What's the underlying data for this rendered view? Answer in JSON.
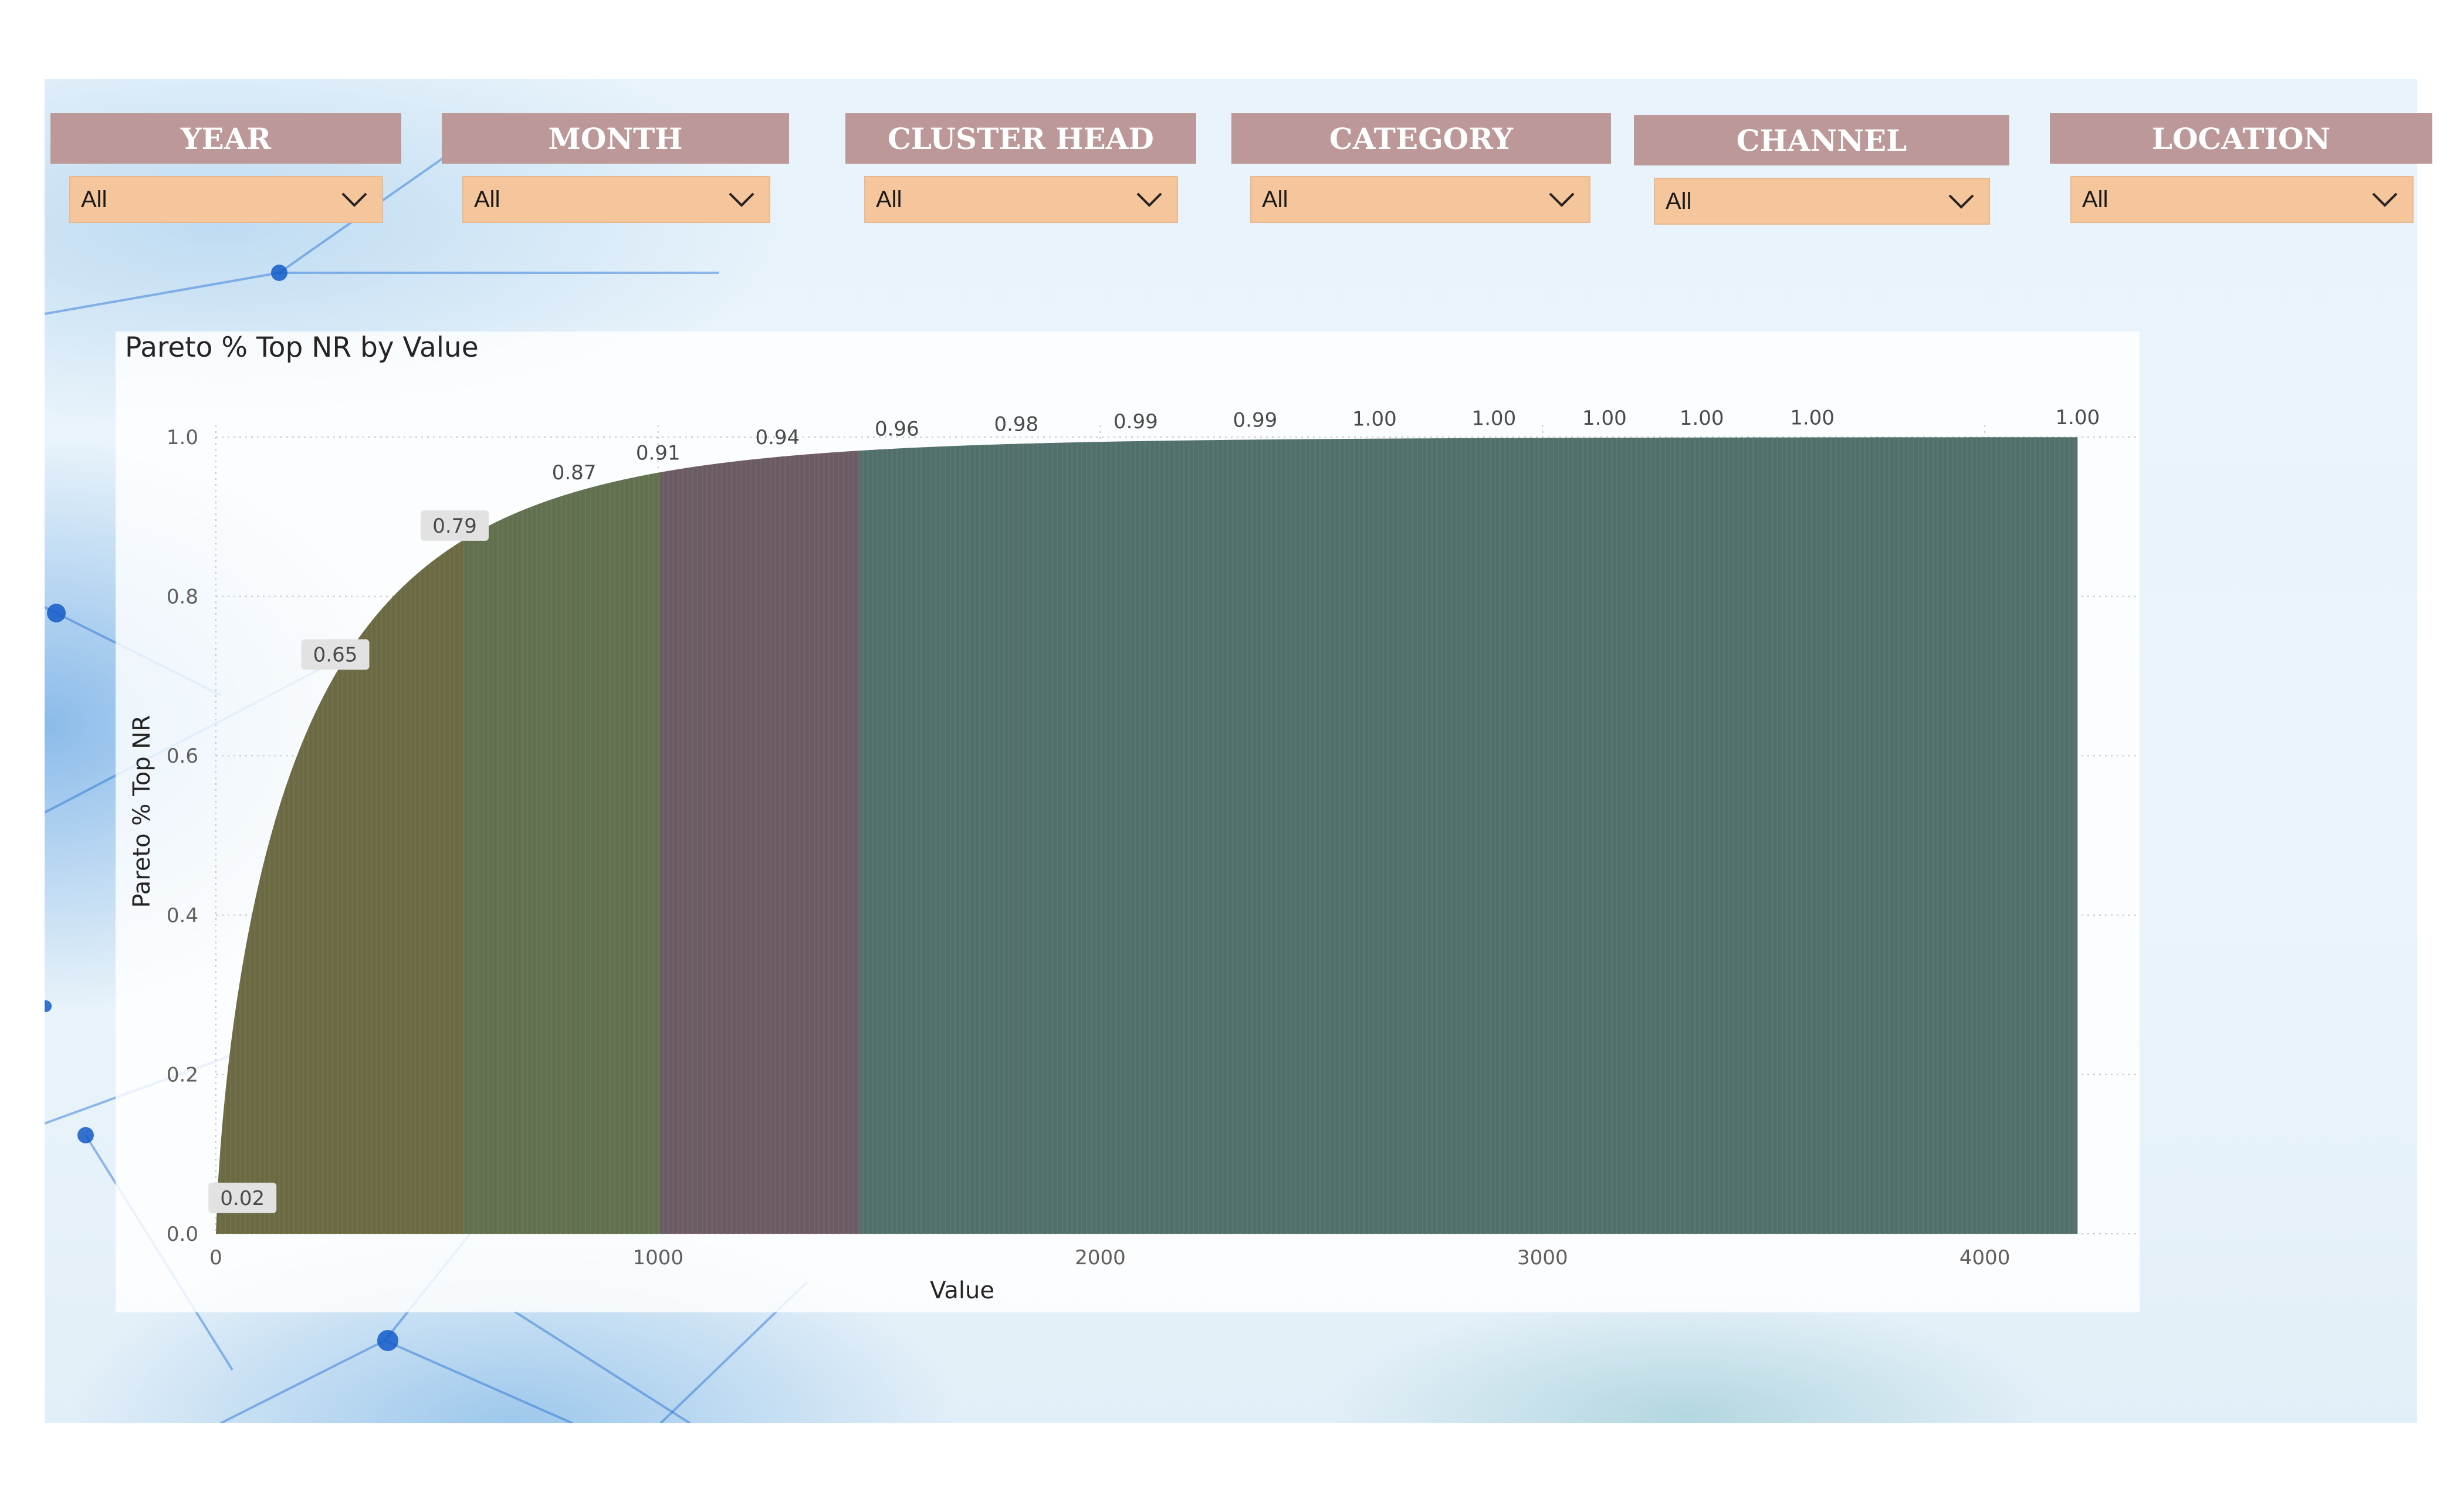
{
  "slicers": [
    {
      "header": "YEAR",
      "value": "All"
    },
    {
      "header": "MONTH",
      "value": "All"
    },
    {
      "header": "CLUSTER HEAD",
      "value": "All"
    },
    {
      "header": "CATEGORY",
      "value": "All"
    },
    {
      "header": "CHANNEL",
      "value": "All"
    },
    {
      "header": "LOCATION",
      "value": "All"
    }
  ],
  "chart": {
    "title": "Pareto % Top NR by Value"
  },
  "chart_data": {
    "type": "area",
    "title": "Pareto % Top NR by Value",
    "xlabel": "Value",
    "ylabel": "Pareto % Top NR",
    "xlim": [
      0,
      4500
    ],
    "ylim": [
      0,
      1.0
    ],
    "x_ticks": [
      "0",
      "1000",
      "2000",
      "3000",
      "4000"
    ],
    "y_ticks": [
      "0.0",
      "0.2",
      "0.4",
      "0.6",
      "0.8",
      "1.0"
    ],
    "grid": true,
    "x": [
      20,
      270,
      540,
      810,
      1000,
      1270,
      1540,
      1810,
      2080,
      2350,
      2620,
      2890,
      3140,
      3360,
      3610,
      4210
    ],
    "y": [
      0.02,
      0.65,
      0.79,
      0.87,
      0.91,
      0.94,
      0.96,
      0.98,
      0.99,
      0.99,
      1.0,
      1.0,
      1.0,
      1.0,
      1.0,
      1.0
    ],
    "data_labels": [
      "0.02",
      "0.65",
      "0.79",
      "0.87",
      "0.91",
      "0.94",
      "0.96",
      "0.98",
      "0.99",
      "0.99",
      "1.00",
      "1.00",
      "1.00",
      "1.00",
      "1.00",
      "1.00"
    ],
    "x_max": 4210,
    "segments": [
      {
        "from": 0,
        "to": 560,
        "color": "#6b6a43"
      },
      {
        "from": 560,
        "to": 1005,
        "color": "#61704e"
      },
      {
        "from": 1005,
        "to": 1455,
        "color": "#6c5b65"
      },
      {
        "from": 1455,
        "to": 4210,
        "color": "#52706b"
      }
    ],
    "colors": {
      "grid": "#c8c8c8",
      "tick_text": "#605e5c",
      "axis_title": "#252423",
      "label_box": "#e2e2e2"
    }
  }
}
